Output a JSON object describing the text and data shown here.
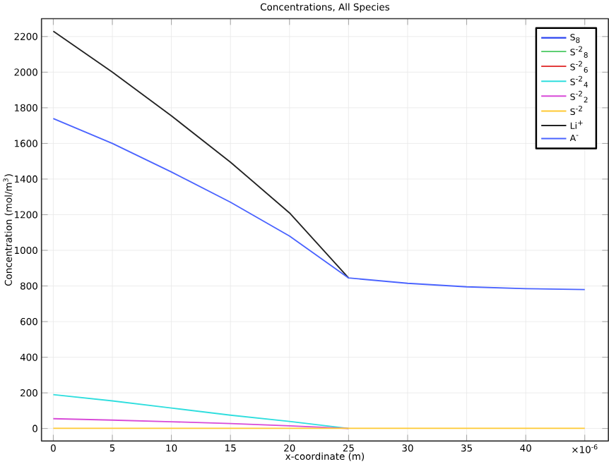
{
  "chart_data": {
    "type": "line",
    "title": "Concentrations, All Species",
    "xlabel": "x-coordinate (m)",
    "ylabel": "Concentration (mol/m$^{3}$)",
    "x": [
      0,
      5,
      10,
      15,
      20,
      25,
      30,
      35,
      40,
      45
    ],
    "series": [
      {
        "name": "S$_{8}$",
        "color": "#2b44f0",
        "values": [
          null,
          null,
          null,
          null,
          null,
          null,
          null,
          null,
          null,
          null
        ]
      },
      {
        "name": "S$^{-2}$$_{8}$",
        "color": "#5fcf73",
        "values": [
          null,
          null,
          null,
          null,
          null,
          null,
          null,
          null,
          null,
          null
        ]
      },
      {
        "name": "S$^{-2}$$_{6}$",
        "color": "#e23c3c",
        "values": [
          null,
          null,
          null,
          null,
          null,
          null,
          null,
          null,
          null,
          null
        ]
      },
      {
        "name": "S$^{-2}$$_{4}$",
        "color": "#2fdede",
        "values": [
          190,
          155,
          115,
          75,
          40,
          0,
          null,
          null,
          null,
          null
        ]
      },
      {
        "name": "S$^{-2}$$_{2}$",
        "color": "#d84ad8",
        "values": [
          55,
          47,
          38,
          28,
          15,
          0,
          null,
          null,
          null,
          null
        ]
      },
      {
        "name": "S$^{-2}$",
        "color": "#ffc933",
        "values": [
          1,
          1,
          1,
          1,
          1,
          1,
          1,
          1,
          1,
          1
        ]
      },
      {
        "name": "Li$^{+}$",
        "color": "#222222",
        "values": [
          2230,
          2000,
          1755,
          1495,
          1210,
          845,
          null,
          null,
          null,
          null
        ]
      },
      {
        "name": "A$^{-}$",
        "color": "#4a63ff",
        "values": [
          1740,
          1600,
          1440,
          1270,
          1080,
          845,
          815,
          795,
          785,
          780
        ]
      }
    ],
    "xlim": [
      -1,
      47
    ],
    "ylim": [
      -70,
      2300
    ],
    "xticks": [
      0,
      5,
      10,
      15,
      20,
      25,
      30,
      35,
      40,
      {
        "value": 45,
        "label": "×10$^{-6}$"
      }
    ],
    "yticks": [
      0,
      200,
      400,
      600,
      800,
      1000,
      1200,
      1400,
      1600,
      1800,
      2000,
      2200
    ],
    "grid": true,
    "legend": "top right",
    "line_style": "solid"
  }
}
